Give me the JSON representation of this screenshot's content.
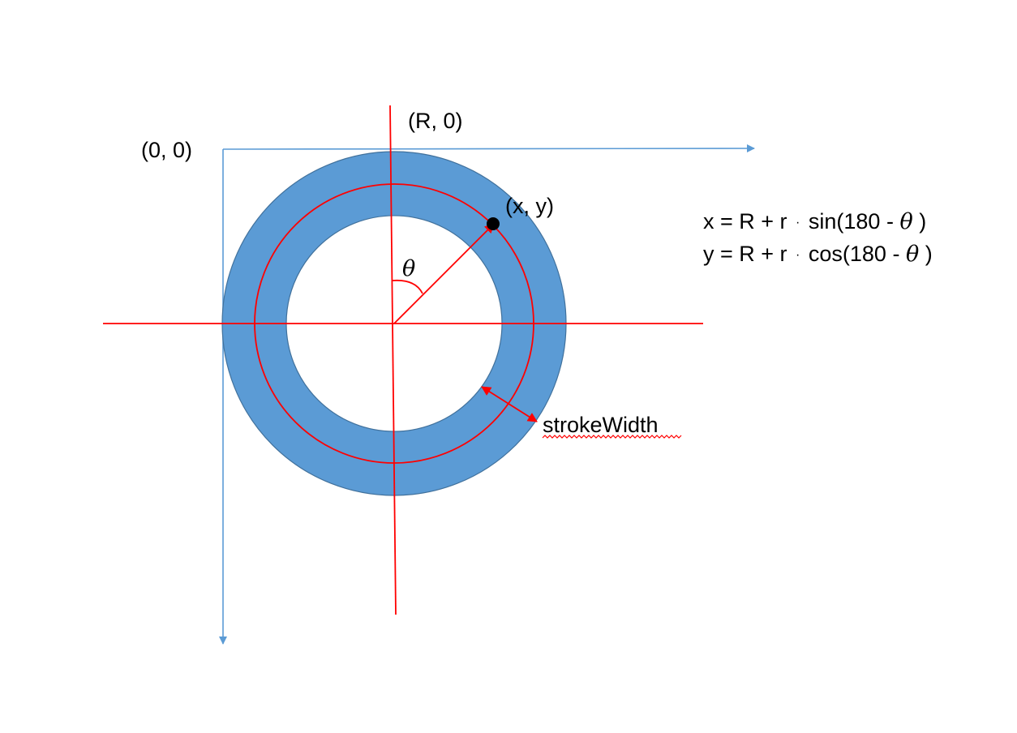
{
  "labels": {
    "origin": "(0, 0)",
    "top_point": "(R, 0)",
    "point": "(x, y)",
    "angle": "θ",
    "stroke_width": "strokeWidth"
  },
  "formulas": {
    "x_prefix": "x = R + r",
    "x_func": "sin(180 - ",
    "y_prefix": "y = R + r",
    "y_func": "cos(180 - ",
    "theta": "θ",
    "close": ")",
    "dot": "·"
  },
  "colors": {
    "ring_fill": "#5b9bd5",
    "ring_edge": "#41719c",
    "axis_blue": "#5b9bd5",
    "red": "#ff0000",
    "text": "#000000",
    "spellcheck": "#ff0000"
  }
}
